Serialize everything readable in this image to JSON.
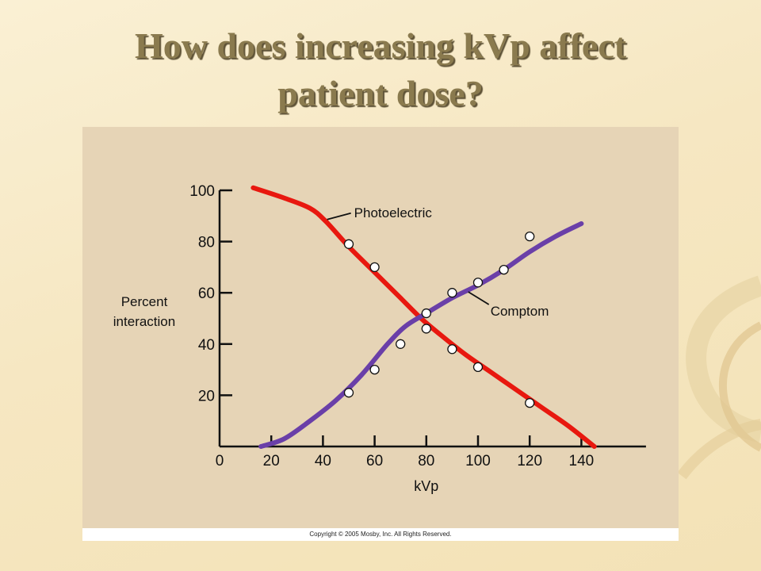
{
  "slide": {
    "title_line1": "How does increasing kVp affect",
    "title_line2": "patient dose?",
    "copyright": "Copyright © 2005 Mosby, Inc. All Rights Reserved.",
    "colors": {
      "background": "#f6e7c2",
      "figure": "#e6d4b6",
      "title": "#8a7a4e"
    }
  },
  "chart_data": {
    "type": "line",
    "title": "",
    "xlabel": "kVp",
    "ylabel_lines": [
      "Percent",
      "interaction"
    ],
    "xlim": [
      0,
      165
    ],
    "ylim": [
      0,
      100
    ],
    "x_ticks": [
      0,
      20,
      40,
      60,
      80,
      100,
      120,
      140
    ],
    "y_ticks": [
      20,
      40,
      60,
      80,
      100
    ],
    "grid": false,
    "legend": "none",
    "series": [
      {
        "name": "Photoelectric",
        "color": "#e8180f",
        "curve": [
          [
            13,
            101
          ],
          [
            25,
            97
          ],
          [
            35,
            93
          ],
          [
            41,
            88
          ],
          [
            50,
            78
          ],
          [
            60,
            68
          ],
          [
            70,
            58
          ],
          [
            78,
            50
          ],
          [
            85,
            44
          ],
          [
            95,
            36
          ],
          [
            105,
            29
          ],
          [
            115,
            22
          ],
          [
            125,
            15
          ],
          [
            135,
            8
          ],
          [
            145,
            0
          ]
        ],
        "points": [
          [
            50,
            79
          ],
          [
            60,
            70
          ],
          [
            80,
            46
          ],
          [
            90,
            38
          ],
          [
            100,
            31
          ],
          [
            120,
            17
          ]
        ],
        "annotation": {
          "text": "Photoelectric",
          "at": [
            41,
            88
          ]
        }
      },
      {
        "name": "Comptom",
        "color": "#6a3fa8",
        "curve": [
          [
            16,
            0
          ],
          [
            25,
            3
          ],
          [
            35,
            10
          ],
          [
            45,
            18
          ],
          [
            55,
            28
          ],
          [
            65,
            40
          ],
          [
            72,
            47
          ],
          [
            80,
            52
          ],
          [
            90,
            58
          ],
          [
            100,
            63
          ],
          [
            110,
            69
          ],
          [
            120,
            76
          ],
          [
            130,
            82
          ],
          [
            140,
            87
          ]
        ],
        "points": [
          [
            50,
            21
          ],
          [
            60,
            30
          ],
          [
            70,
            40
          ],
          [
            80,
            52
          ],
          [
            90,
            60
          ],
          [
            100,
            64
          ],
          [
            110,
            69
          ],
          [
            120,
            82
          ]
        ],
        "annotation": {
          "text": "Comptom",
          "at": [
            95,
            61
          ]
        }
      }
    ]
  }
}
